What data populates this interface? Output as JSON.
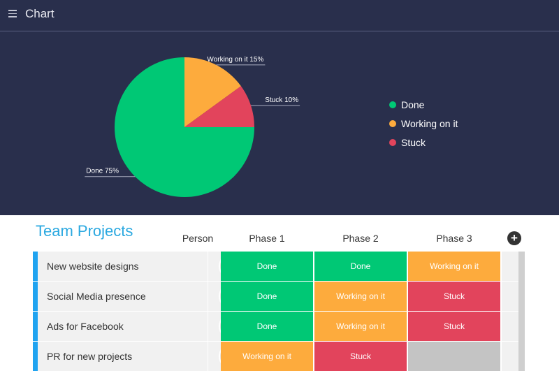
{
  "header": {
    "title": "Chart",
    "menu_icon": "hamburger-menu-icon"
  },
  "colors": {
    "done": "#00c875",
    "working": "#fdab3d",
    "stuck": "#e2445c",
    "empty": "#c4c4c4",
    "panel": "#292f4c",
    "accent": "#2aa8e0"
  },
  "chart_data": {
    "type": "pie",
    "slices": [
      {
        "name": "Done",
        "value": 75,
        "label": "Done 75%",
        "color": "#00c875"
      },
      {
        "name": "Working on it",
        "value": 15,
        "label": "Working on it 15%",
        "color": "#fdab3d"
      },
      {
        "name": "Stuck",
        "value": 10,
        "label": "Stuck 10%",
        "color": "#e2445c"
      }
    ],
    "legend": {
      "placement": "right",
      "entries": [
        "Done",
        "Working on it",
        "Stuck"
      ]
    }
  },
  "board": {
    "title": "Team Projects",
    "columns": [
      "Person",
      "Phase 1",
      "Phase 2",
      "Phase 3"
    ],
    "add_icon": "plus-circle-icon",
    "rows": [
      {
        "name": "New website designs",
        "phases": [
          "Done",
          "Done",
          "Working on it"
        ],
        "status": [
          "done",
          "done",
          "working"
        ]
      },
      {
        "name": "Social Media presence",
        "phases": [
          "Done",
          "Working on it",
          "Stuck"
        ],
        "status": [
          "done",
          "working",
          "stuck"
        ]
      },
      {
        "name": "Ads for Facebook",
        "phases": [
          "Done",
          "Working on it",
          "Stuck"
        ],
        "status": [
          "done",
          "working",
          "stuck"
        ]
      },
      {
        "name": "PR for new projects",
        "phases": [
          "Working on it",
          "Stuck",
          ""
        ],
        "status": [
          "working",
          "stuck",
          "empty"
        ]
      }
    ]
  }
}
